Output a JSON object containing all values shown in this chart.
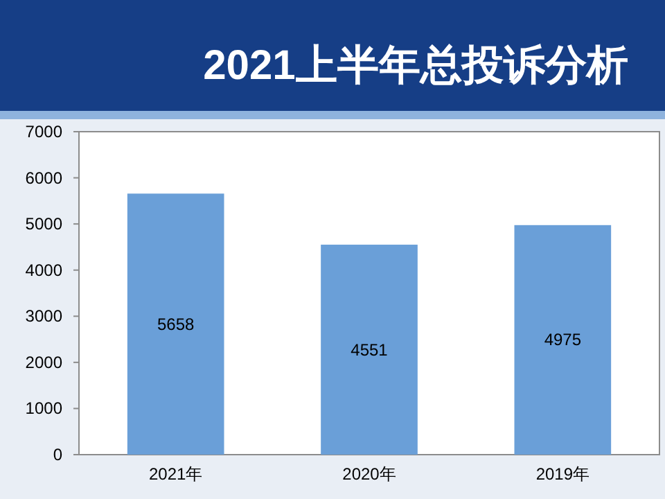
{
  "chart_data": {
    "type": "bar",
    "title": "2021上半年总投诉分析",
    "categories": [
      "2021年",
      "2020年",
      "2019年"
    ],
    "values": [
      5658,
      4551,
      4975
    ],
    "color": "#6a9fd8",
    "ylim": [
      0,
      7000
    ],
    "yticks": [
      0,
      1000,
      2000,
      3000,
      4000,
      5000,
      6000,
      7000
    ],
    "data_labels": true
  }
}
